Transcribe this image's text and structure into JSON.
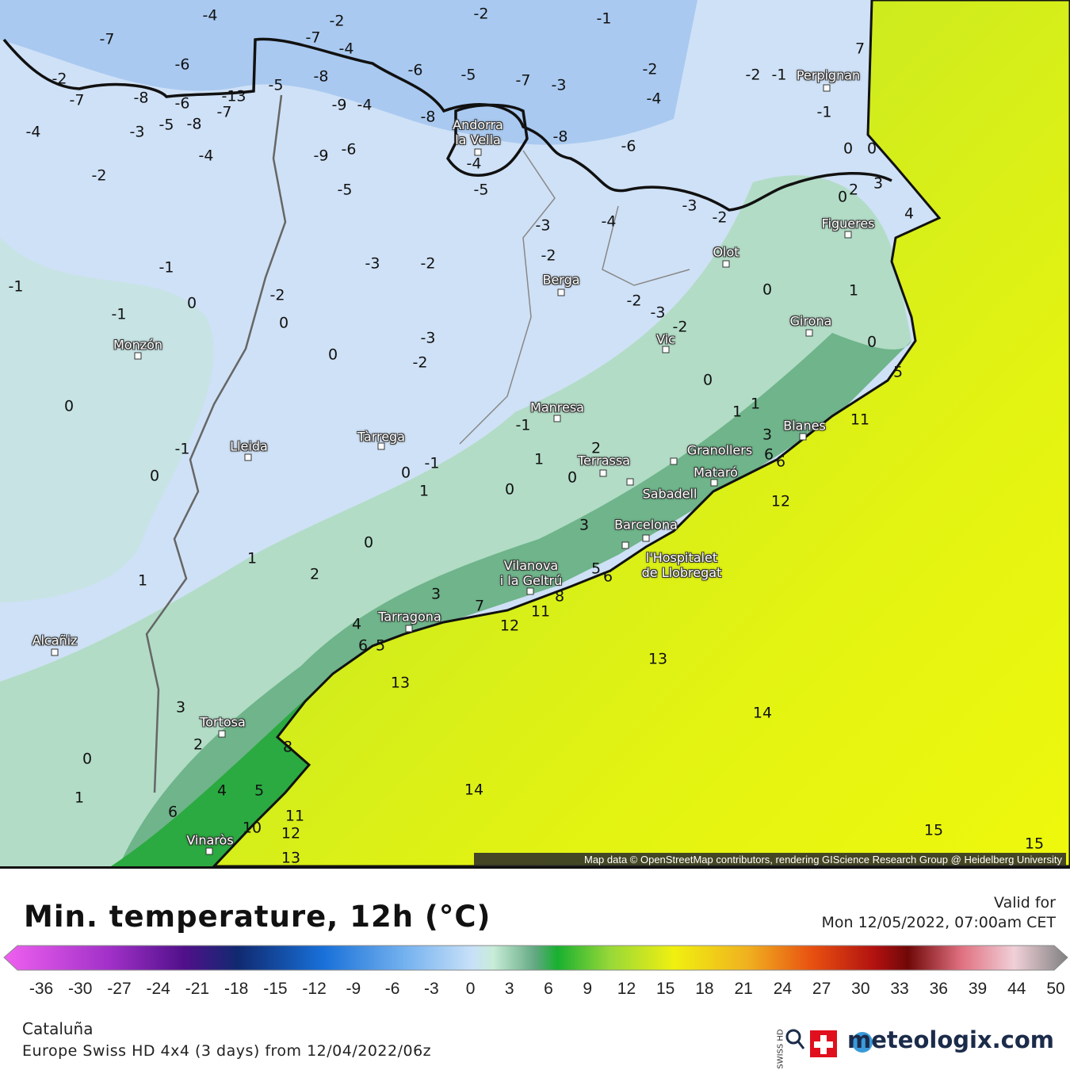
{
  "map": {
    "cities": [
      "Perpignan",
      "Andorra\nla Vella",
      "Figueres",
      "Olot",
      "Berga",
      "Girona",
      "Vic",
      "Monzón",
      "Manresa",
      "Tàrrega",
      "Lleida",
      "Blanes",
      "Terrassa",
      "Granollers",
      "Mataró",
      "Sabadell",
      "Barcelona",
      "l'Hospitalet\nde Llobregat",
      "Vilanova\ni la Geltrú",
      "Tarragona",
      "Alcañiz",
      "Tortosa",
      "Vinaròs"
    ],
    "contour_labels": [
      -4,
      -7,
      -2,
      -2,
      -1,
      -7,
      -4,
      -6,
      -2,
      -7,
      -8,
      -6,
      -7,
      -13,
      -5,
      -8,
      -9,
      -4,
      -6,
      -5,
      -7,
      -3,
      -2,
      -4,
      -2,
      -1,
      7,
      -1,
      -4,
      -3,
      -5,
      -8,
      -8,
      -8,
      -6,
      0,
      0,
      -4,
      -9,
      -6,
      -2,
      -4,
      -5,
      -5,
      0,
      2,
      3,
      -3,
      -2,
      -4,
      -3,
      4,
      -3,
      -2,
      -2,
      -1,
      -1,
      -2,
      0,
      1,
      -1,
      0,
      0,
      -2,
      -3,
      -2,
      -3,
      0,
      -2,
      0,
      0,
      5,
      0,
      1,
      1,
      11,
      -1,
      3,
      2,
      -1,
      6,
      6,
      1,
      -1,
      0,
      0,
      0,
      1,
      0,
      12,
      3,
      0,
      1,
      1,
      2,
      5,
      6,
      3,
      8,
      7,
      11,
      12,
      4,
      6,
      5,
      13,
      13,
      3,
      14,
      2,
      8,
      0,
      4,
      5,
      14,
      1,
      6,
      11,
      10,
      12,
      15,
      13,
      15
    ],
    "attribution": "Map data © OpenStreetMap contributors, rendering GIScience Research Group @ Heidelberg University"
  },
  "legend": {
    "title": "Min. temperature, 12h (°C)",
    "valid_label": "Valid for",
    "valid_time": "Mon 12/05/2022, 07:00am CET",
    "scale_ticks": [
      -36,
      -30,
      -27,
      -24,
      -21,
      -18,
      -15,
      -12,
      -9,
      -6,
      -3,
      0,
      3,
      6,
      9,
      12,
      15,
      18,
      21,
      24,
      27,
      30,
      33,
      36,
      39,
      44,
      50
    ]
  },
  "footer": {
    "region": "Cataluña",
    "model": "Europe Swiss HD 4x4 (3 days) from 12/04/2022/06z",
    "swiss_hd": "SWISS HD",
    "brand": "meteologix.com"
  }
}
